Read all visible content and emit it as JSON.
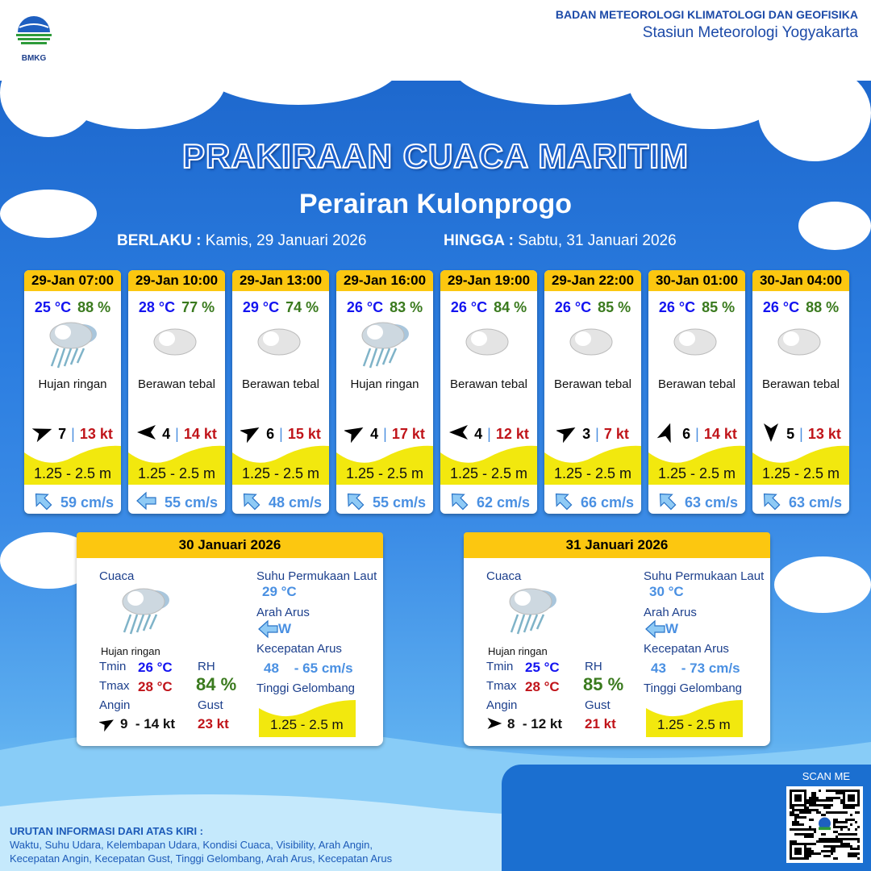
{
  "header": {
    "logo_text": "BMKG",
    "org_name": "BADAN METEOROLOGI KLIMATOLOGI DAN GEOFISIKA",
    "station": "Stasiun Meteorologi Yogyakarta"
  },
  "title": "PRAKIRAAN CUACA MARITIM",
  "subtitle": "Perairan Kulonprogo",
  "validity": {
    "from_label": "BERLAKU :",
    "from": "Kamis, 29 Januari 2026",
    "to_label": "HINGGA :",
    "to": "Sabtu, 31 Januari 2026"
  },
  "colors": {
    "header_yellow": "#fcc710",
    "wave_yellow": "#f2e80e",
    "temp": "#1414f0",
    "rh": "#3a7a1e",
    "gust": "#c0141a",
    "current": "#4a90e2"
  },
  "forecasts": [
    {
      "time": "29-Jan 07:00",
      "temp": "25 °C",
      "rh": "88 %",
      "icon": "light-rain",
      "condition": "Hujan ringan",
      "wind_speed": "7",
      "wind_dir_deg": 70,
      "gust": "13 kt",
      "wave": "1.25 - 2.5 m",
      "current_dir_deg": 315,
      "current": "59 cm/s"
    },
    {
      "time": "29-Jan 10:00",
      "temp": "28 °C",
      "rh": "77 %",
      "icon": "overcast",
      "condition": "Berawan tebal",
      "wind_speed": "4",
      "wind_dir_deg": 270,
      "gust": "14 kt",
      "wave": "1.25 - 2.5 m",
      "current_dir_deg": 270,
      "current": "55 cm/s"
    },
    {
      "time": "29-Jan 13:00",
      "temp": "29 °C",
      "rh": "74 %",
      "icon": "overcast",
      "condition": "Berawan tebal",
      "wind_speed": "6",
      "wind_dir_deg": 60,
      "gust": "15 kt",
      "wave": "1.25 - 2.5 m",
      "current_dir_deg": 315,
      "current": "48 cm/s"
    },
    {
      "time": "29-Jan 16:00",
      "temp": "26 °C",
      "rh": "83 %",
      "icon": "light-rain",
      "condition": "Hujan ringan",
      "wind_speed": "4",
      "wind_dir_deg": 60,
      "gust": "17 kt",
      "wave": "1.25 - 2.5 m",
      "current_dir_deg": 315,
      "current": "55 cm/s"
    },
    {
      "time": "29-Jan 19:00",
      "temp": "26 °C",
      "rh": "84 %",
      "icon": "overcast",
      "condition": "Berawan tebal",
      "wind_speed": "4",
      "wind_dir_deg": 270,
      "gust": "12 kt",
      "wave": "1.25 - 2.5 m",
      "current_dir_deg": 315,
      "current": "62 cm/s"
    },
    {
      "time": "29-Jan 22:00",
      "temp": "26 °C",
      "rh": "85 %",
      "icon": "overcast",
      "condition": "Berawan tebal",
      "wind_speed": "3",
      "wind_dir_deg": 60,
      "gust": "7 kt",
      "wave": "1.25 - 2.5 m",
      "current_dir_deg": 315,
      "current": "66 cm/s"
    },
    {
      "time": "30-Jan 01:00",
      "temp": "26 °C",
      "rh": "85 %",
      "icon": "overcast",
      "condition": "Berawan tebal",
      "wind_speed": "6",
      "wind_dir_deg": 20,
      "gust": "14 kt",
      "wave": "1.25 - 2.5 m",
      "current_dir_deg": 315,
      "current": "63 cm/s"
    },
    {
      "time": "30-Jan 04:00",
      "temp": "26 °C",
      "rh": "88 %",
      "icon": "overcast",
      "condition": "Berawan tebal",
      "wind_speed": "5",
      "wind_dir_deg": 180,
      "gust": "13 kt",
      "wave": "1.25 - 2.5 m",
      "current_dir_deg": 315,
      "current": "63 cm/s"
    }
  ],
  "daily": [
    {
      "date": "30 Januari 2026",
      "weather_label": "Cuaca",
      "condition": "Hujan ringan",
      "tmin_label": "Tmin",
      "tmin": "26 °C",
      "tmax_label": "Tmax",
      "tmax": "28 °C",
      "rh_label": "RH",
      "rh": "84 %",
      "wind_label": "Angin",
      "wind": "9  - 14 kt",
      "wind_dir_deg": 60,
      "gust_label": "Gust",
      "gust": "23 kt",
      "sst_label": "Suhu Permukaan Laut",
      "sst": "29 °C",
      "current_dir_label": "Arah Arus",
      "current_dir": "W",
      "current_speed_label": "Kecepatan Arus",
      "current_speed": "48    - 65 cm/s",
      "wave_label": "Tinggi Gelombang",
      "wave": "1.25 - 2.5 m"
    },
    {
      "date": "31 Januari 2026",
      "weather_label": "Cuaca",
      "condition": "Hujan ringan",
      "tmin_label": "Tmin",
      "tmin": "25 °C",
      "tmax_label": "Tmax",
      "tmax": "28 °C",
      "rh_label": "RH",
      "rh": "85 %",
      "wind_label": "Angin",
      "wind": "8  - 12 kt",
      "wind_dir_deg": 90,
      "gust_label": "Gust",
      "gust": "21 kt",
      "sst_label": "Suhu Permukaan Laut",
      "sst": "30 °C",
      "current_dir_label": "Arah Arus",
      "current_dir": "W",
      "current_speed_label": "Kecepatan Arus",
      "current_speed": "43    - 73 cm/s",
      "wave_label": "Tinggi Gelombang",
      "wave": "1.25 - 2.5 m"
    }
  ],
  "footer": {
    "heading": "URUTAN INFORMASI DARI ATAS KIRI :",
    "line1": "Waktu, Suhu Udara, Kelembapan Udara, Kondisi Cuaca, Visibility, Arah Angin,",
    "line2": "Kecepatan Angin, Kecepatan Gust, Tinggi Gelombang, Arah Arus, Kecepatan Arus",
    "scan_label": "SCAN ME"
  }
}
